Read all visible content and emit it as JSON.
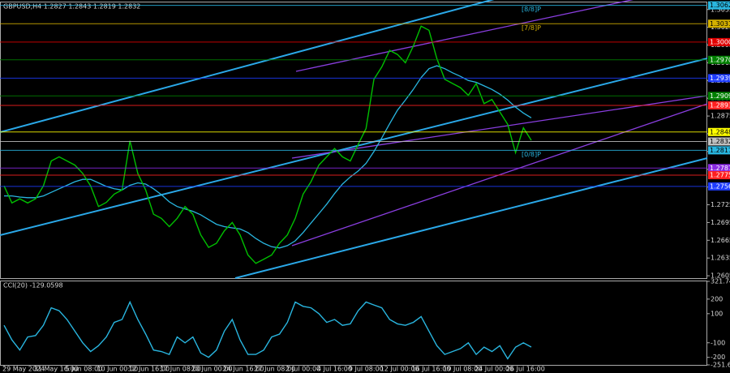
{
  "chart_data": [
    {
      "type": "line",
      "title": "GBPUSD,H4  1.2827 1.2843 1.2819 1.2832",
      "color": "#00c000",
      "categories": [
        "29 May 2024",
        null,
        null,
        null,
        "31 May 16:00",
        null,
        null,
        null,
        "5 Jun 08:00",
        null,
        null,
        null,
        "10 Jun 00:00",
        null,
        null,
        null,
        "12 Jun 16:00",
        null,
        null,
        null,
        "17 Jun 08:00",
        null,
        null,
        null,
        "20 Jun 00:00",
        null,
        null,
        null,
        "24 Jun 16:00",
        null,
        null,
        null,
        "27 Jun 08:00",
        null,
        null,
        null,
        "2 Jul 00:00",
        null,
        null,
        null,
        "4 Jul 16:00",
        null,
        null,
        null,
        "9 Jul 08:00",
        null,
        null,
        null,
        "12 Jul 00:00",
        null,
        null,
        null,
        "16 Jul 16:00",
        null,
        null,
        null,
        "19 Jul 08:00",
        null,
        null,
        null,
        "24 Jul 00:00",
        null,
        null,
        null,
        "26 Jul 16:00",
        null,
        null,
        null
      ],
      "values": [
        1.2757,
        1.2728,
        1.2735,
        1.2728,
        1.2735,
        1.2757,
        1.2799,
        1.2806,
        1.2799,
        1.2792,
        1.2778,
        1.2757,
        1.2722,
        1.2729,
        1.2743,
        1.275,
        1.2833,
        1.2778,
        1.275,
        1.2709,
        1.2702,
        1.2688,
        1.2702,
        1.2722,
        1.2709,
        1.2674,
        1.2653,
        1.266,
        1.2681,
        1.2695,
        1.2674,
        1.264,
        1.2626,
        1.2633,
        1.264,
        1.266,
        1.2674,
        1.2702,
        1.2743,
        1.2764,
        1.2792,
        1.2806,
        1.282,
        1.2806,
        1.2799,
        1.2827,
        1.2854,
        1.2937,
        1.2958,
        1.2986,
        1.2979,
        1.2965,
        1.2993,
        1.3027,
        1.302,
        1.2972,
        1.2937,
        1.293,
        1.2923,
        1.291,
        1.293,
        1.2896,
        1.2903,
        1.2882,
        1.2861,
        1.2813,
        1.2855,
        1.2834
      ],
      "ma_color": "#29b6e0",
      "ma_values": [
        1.274,
        1.274,
        1.2738,
        1.2737,
        1.2737,
        1.274,
        1.2746,
        1.2752,
        1.2758,
        1.2764,
        1.2768,
        1.2768,
        1.2762,
        1.2756,
        1.2752,
        1.275,
        1.2758,
        1.2762,
        1.276,
        1.2752,
        1.2742,
        1.273,
        1.2722,
        1.2718,
        1.2714,
        1.2708,
        1.27,
        1.2692,
        1.2688,
        1.2686,
        1.2684,
        1.2678,
        1.2668,
        1.266,
        1.2654,
        1.2652,
        1.2656,
        1.2664,
        1.2678,
        1.2694,
        1.271,
        1.2726,
        1.2744,
        1.276,
        1.2772,
        1.2782,
        1.2795,
        1.2815,
        1.2838,
        1.2862,
        1.2885,
        1.2902,
        1.292,
        1.294,
        1.2955,
        1.296,
        1.2955,
        1.2948,
        1.2942,
        1.2935,
        1.2932,
        1.2926,
        1.292,
        1.2912,
        1.2902,
        1.289,
        1.288,
        1.2872
      ],
      "ylim": [
        1.2601,
        1.3067
      ],
      "yticks": [
        1.2605,
        1.2635,
        1.2665,
        1.2695,
        1.2725,
        1.2755,
        1.2785,
        1.2815,
        1.2845,
        1.2875,
        1.2905,
        1.2935,
        1.2965,
        1.2995,
        1.3025,
        1.3055
      ],
      "grid": false,
      "levels": [
        {
          "value": 1.3062,
          "label": "1.3062",
          "color": "#29b6e0",
          "name": "[8/8]P"
        },
        {
          "value": 1.3031,
          "label": "1.3031",
          "color": "#d4b000",
          "name": "[7/8]P"
        },
        {
          "value": 1.3,
          "label": "1.3000",
          "color": "#e00000"
        },
        {
          "value": 1.297,
          "label": "1.2970",
          "color": "#008000"
        },
        {
          "value": 1.2939,
          "label": "1.2939",
          "color": "#1e3cff"
        },
        {
          "value": 1.2909,
          "label": "1.2909",
          "color": "#008000"
        },
        {
          "value": 1.2893,
          "label": "1.2893",
          "color": "#ff2020"
        },
        {
          "value": 1.2848,
          "label": "1.2848",
          "color": "#ffff00"
        },
        {
          "value": 1.2832,
          "label": "1.2832",
          "color": "#c0c0c0"
        },
        {
          "value": 1.2817,
          "label": "1.2817",
          "color": "#29b6e0",
          "name": "[0/8]P"
        },
        {
          "value": 1.2787,
          "label": "1.2787",
          "color": "#8a2be2"
        },
        {
          "value": 1.2775,
          "label": "1.2775",
          "color": "#ff2020"
        },
        {
          "value": 1.2756,
          "label": "1.2756",
          "color": "#1e3cff"
        }
      ]
    },
    {
      "type": "line",
      "title": "CCI(20) -129.0598",
      "color": "#29b6e0",
      "values": [
        20,
        -80,
        -150,
        -60,
        -50,
        20,
        140,
        120,
        60,
        -20,
        -100,
        -160,
        -120,
        -60,
        40,
        60,
        180,
        60,
        -40,
        -150,
        -160,
        -180,
        -60,
        -100,
        -60,
        -170,
        -200,
        -150,
        -20,
        60,
        -80,
        -180,
        -180,
        -150,
        -60,
        -40,
        40,
        180,
        150,
        140,
        100,
        40,
        60,
        20,
        30,
        120,
        180,
        160,
        140,
        60,
        30,
        20,
        40,
        80,
        -20,
        -120,
        -180,
        -160,
        -140,
        -100,
        -180,
        -130,
        -160,
        -120,
        -210,
        -130,
        -100,
        -129
      ],
      "ylim": [
        -251.6993,
        321.7476
      ],
      "yticks": [
        321.7476,
        200,
        100,
        -100,
        -200,
        -251.6993
      ],
      "grid": false
    }
  ]
}
